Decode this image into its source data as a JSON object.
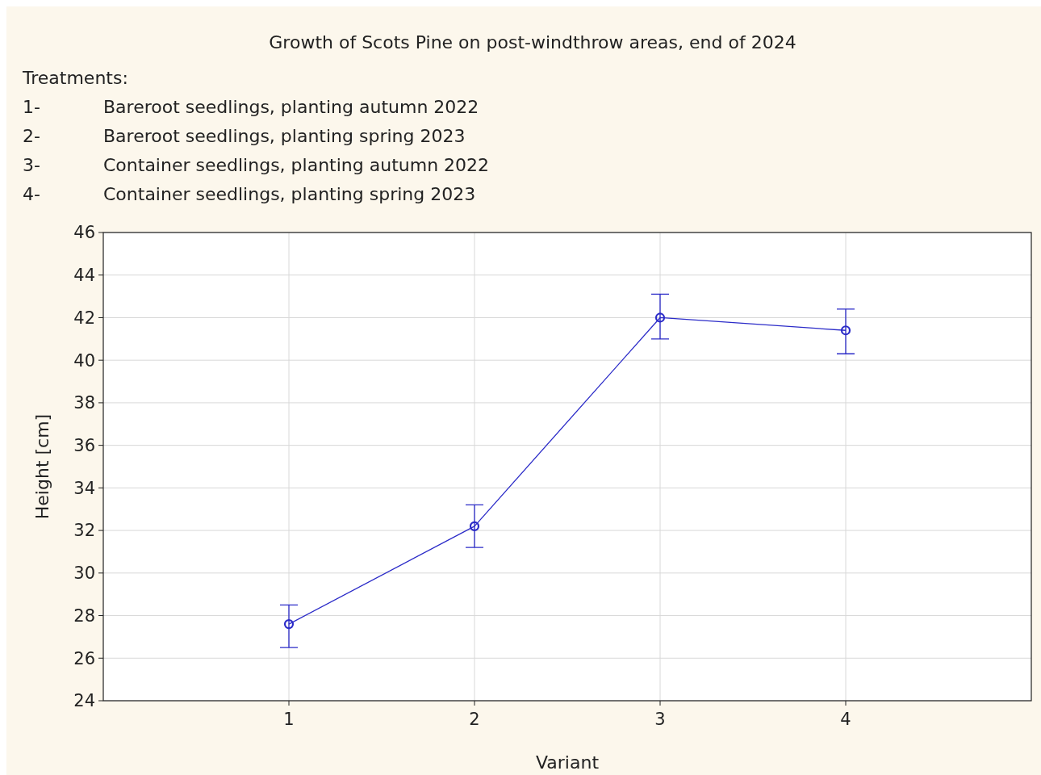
{
  "chart_data": {
    "type": "line",
    "title": "Growth of Scots Pine on post-windthrow areas, end of 2024",
    "xlabel": "Variant",
    "ylabel": "Height [cm]",
    "annotations": [
      "Treatments:",
      "1- Bareroot seedlings, planting autumn 2022",
      "2- Bareroot seedlings, planting spring 2023",
      "3- Container seedlings, planting autumn 2022",
      "4- Container seedlings, planting spring 2023"
    ],
    "x": [
      1,
      2,
      3,
      4
    ],
    "series": [
      {
        "color": "#2b2bc8",
        "values": [
          27.6,
          32.2,
          42.0,
          41.4
        ],
        "errors": [
          [
            26.5,
            28.5
          ],
          [
            31.2,
            33.2
          ],
          [
            41.0,
            43.1
          ],
          [
            40.3,
            42.4
          ]
        ]
      }
    ],
    "xlim": [
      0,
      5
    ],
    "xticks": [
      1,
      2,
      3,
      4
    ],
    "ylim": [
      24,
      46
    ],
    "yticks": [
      24,
      26,
      28,
      30,
      32,
      34,
      36,
      38,
      40,
      42,
      44,
      46
    ],
    "grid": true,
    "marker": "circle",
    "line_style": "solid"
  }
}
